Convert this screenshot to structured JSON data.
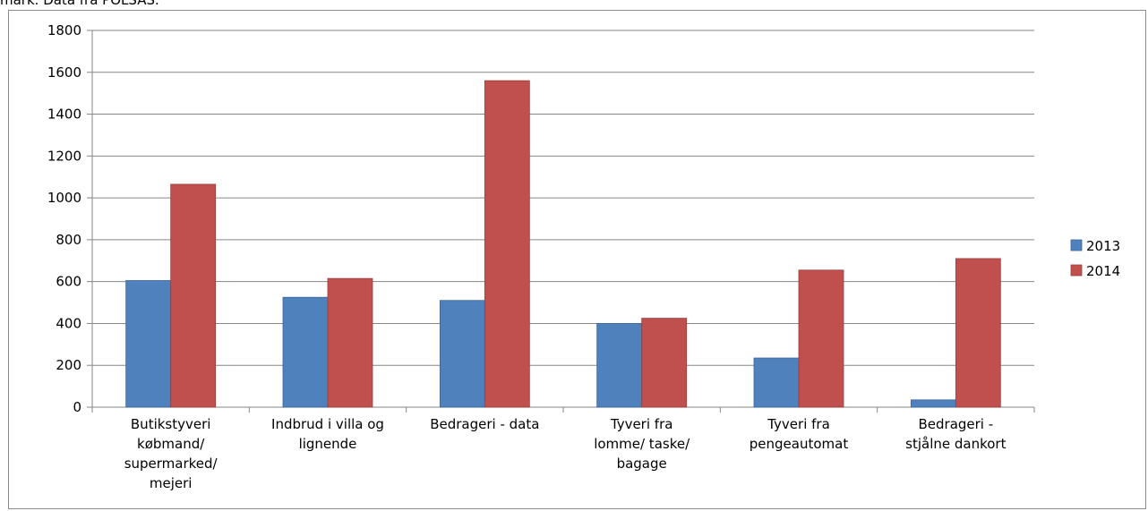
{
  "caption": "mark. Data fra POLSAS.",
  "colors": {
    "series_2013": "#4f81bd",
    "series_2014": "#c0504d"
  },
  "chart_data": {
    "type": "bar",
    "title": "",
    "xlabel": "",
    "ylabel": "",
    "ylim": [
      0,
      1800
    ],
    "yticks": [
      0,
      200,
      400,
      600,
      800,
      1000,
      1200,
      1400,
      1600,
      1800
    ],
    "grid": true,
    "legend_position": "right",
    "categories": [
      [
        "Butikstyveri",
        "købmand/",
        "supermarked/",
        "mejeri"
      ],
      [
        "Indbrud i villa og",
        "lignende"
      ],
      [
        "Bedrageri - data"
      ],
      [
        "Tyveri fra",
        "lomme/ taske/",
        "bagage"
      ],
      [
        "Tyveri fra",
        "pengeautomat"
      ],
      [
        "Bedrageri -",
        "stjålne dankort"
      ]
    ],
    "series": [
      {
        "name": "2013",
        "values": [
          605,
          525,
          510,
          400,
          235,
          35
        ]
      },
      {
        "name": "2014",
        "values": [
          1065,
          615,
          1560,
          425,
          655,
          710
        ]
      }
    ]
  }
}
